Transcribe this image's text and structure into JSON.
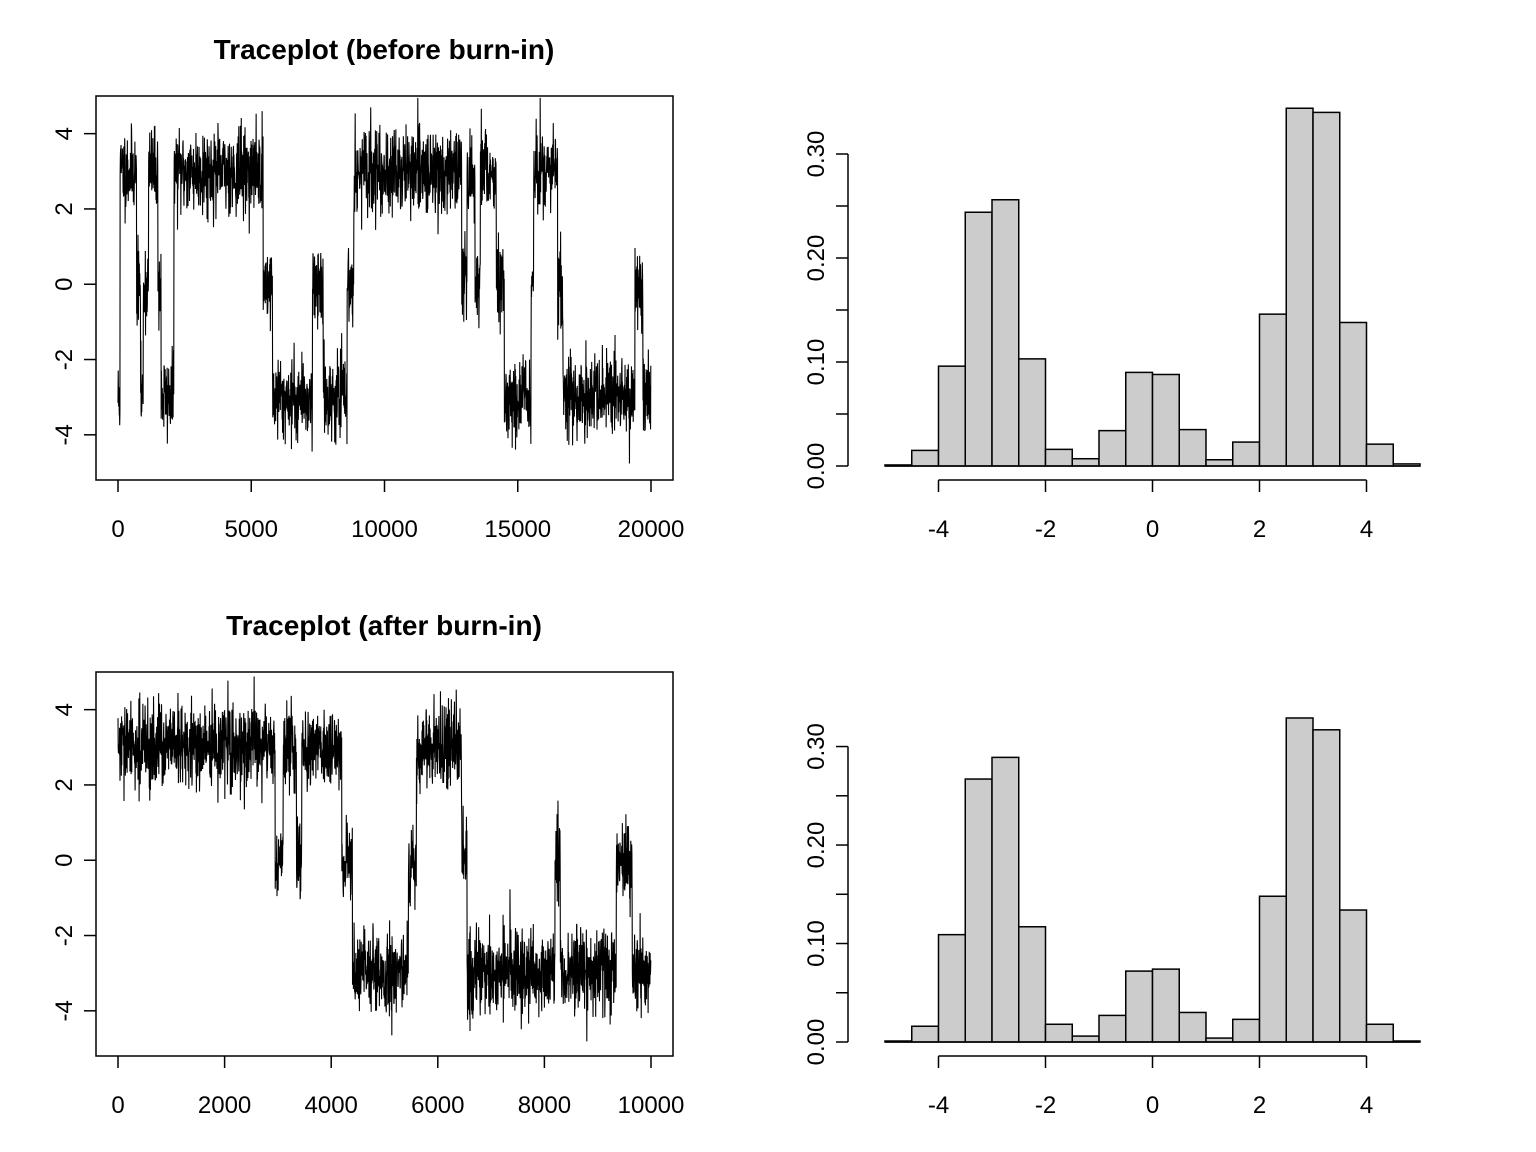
{
  "colors": {
    "bar_fill": "#cccccc",
    "line": "#000000",
    "background": "#ffffff"
  },
  "chart_data": [
    {
      "type": "line",
      "title": "Traceplot (before burn-in)",
      "xlabel": "",
      "ylabel": "",
      "xlim": [
        0,
        20000
      ],
      "ylim": [
        -5.2,
        5.0
      ],
      "x_ticks": [
        0,
        5000,
        10000,
        15000,
        20000
      ],
      "x_tick_labels": [
        "0",
        "5000",
        "10000",
        "15000",
        "20000"
      ],
      "y_ticks": [
        -4,
        -2,
        0,
        2,
        4
      ],
      "y_tick_labels": [
        "-4",
        "-2",
        "0",
        "2",
        "4"
      ],
      "noise": 0.55,
      "seed": 11,
      "segments": [
        [
          0,
          80,
          -3.0
        ],
        [
          80,
          200,
          3.0
        ],
        [
          200,
          560,
          3.0
        ],
        [
          560,
          700,
          3.0
        ],
        [
          700,
          850,
          0.0
        ],
        [
          850,
          950,
          -3.0
        ],
        [
          950,
          1150,
          0.0
        ],
        [
          1150,
          1500,
          3.0
        ],
        [
          1500,
          1620,
          0.0
        ],
        [
          1620,
          2100,
          -3.0
        ],
        [
          2100,
          5450,
          3.0
        ],
        [
          5450,
          5800,
          0.0
        ],
        [
          5800,
          7300,
          -3.0
        ],
        [
          7300,
          7700,
          0.0
        ],
        [
          7700,
          8600,
          -3.0
        ],
        [
          8600,
          8850,
          0.0
        ],
        [
          8850,
          12900,
          3.0
        ],
        [
          12900,
          13100,
          0.0
        ],
        [
          13100,
          13400,
          3.0
        ],
        [
          13400,
          13600,
          0.0
        ],
        [
          13600,
          14200,
          3.0
        ],
        [
          14200,
          14500,
          0.0
        ],
        [
          14500,
          15500,
          -3.0
        ],
        [
          15500,
          15600,
          0.0
        ],
        [
          15600,
          16500,
          3.0
        ],
        [
          16500,
          16700,
          0.0
        ],
        [
          16700,
          19400,
          -3.0
        ],
        [
          19400,
          19700,
          0.0
        ],
        [
          19700,
          20000,
          -3.0
        ]
      ]
    },
    {
      "type": "bar",
      "title": "",
      "xlabel": "",
      "ylabel": "",
      "bin_edges": [
        -5.0,
        -4.5,
        -4.0,
        -3.5,
        -3.0,
        -2.5,
        -2.0,
        -1.5,
        -1.0,
        -0.5,
        0.0,
        0.5,
        1.0,
        1.5,
        2.0,
        2.5,
        3.0,
        3.5,
        4.0,
        4.5,
        5.0
      ],
      "values": [
        0.001,
        0.015,
        0.096,
        0.244,
        0.256,
        0.103,
        0.016,
        0.007,
        0.034,
        0.09,
        0.088,
        0.035,
        0.006,
        0.023,
        0.146,
        0.344,
        0.34,
        0.138,
        0.021,
        0.002
      ],
      "xlim": [
        -5.0,
        5.0
      ],
      "ylim": [
        0,
        0.35
      ],
      "x_ticks": [
        -4,
        -2,
        0,
        2,
        4
      ],
      "x_tick_labels": [
        "-4",
        "-2",
        "0",
        "2",
        "4"
      ],
      "y_ticks": [
        0.0,
        0.05,
        0.1,
        0.15,
        0.2,
        0.25,
        0.3
      ],
      "y_tick_labels": [
        "0.00",
        "",
        "0.10",
        "",
        "0.20",
        "",
        "0.30"
      ]
    },
    {
      "type": "line",
      "title": "Traceplot (after burn-in)",
      "xlabel": "",
      "ylabel": "",
      "xlim": [
        0,
        10000
      ],
      "ylim": [
        -5.2,
        5.0
      ],
      "x_ticks": [
        0,
        2000,
        4000,
        6000,
        8000,
        10000
      ],
      "x_tick_labels": [
        "0",
        "2000",
        "4000",
        "6000",
        "8000",
        "10000"
      ],
      "y_ticks": [
        -4,
        -2,
        0,
        2,
        4
      ],
      "y_tick_labels": [
        "-4",
        "-2",
        "0",
        "2",
        "4"
      ],
      "noise": 0.55,
      "seed": 29,
      "segments": [
        [
          0,
          2950,
          3.0
        ],
        [
          2950,
          3100,
          0.0
        ],
        [
          3100,
          3350,
          3.0
        ],
        [
          3350,
          3450,
          0.0
        ],
        [
          3450,
          4200,
          3.0
        ],
        [
          4200,
          4400,
          0.0
        ],
        [
          4400,
          5450,
          -3.0
        ],
        [
          5450,
          5600,
          0.0
        ],
        [
          5600,
          6450,
          3.0
        ],
        [
          6450,
          6550,
          0.0
        ],
        [
          6550,
          8200,
          -3.0
        ],
        [
          8200,
          8300,
          0.0
        ],
        [
          8300,
          9350,
          -3.0
        ],
        [
          9350,
          9650,
          0.0
        ],
        [
          9650,
          10000,
          -3.0
        ]
      ]
    },
    {
      "type": "bar",
      "title": "",
      "xlabel": "",
      "ylabel": "",
      "bin_edges": [
        -5.0,
        -4.5,
        -4.0,
        -3.5,
        -3.0,
        -2.5,
        -2.0,
        -1.5,
        -1.0,
        -0.5,
        0.0,
        0.5,
        1.0,
        1.5,
        2.0,
        2.5,
        3.0,
        3.5,
        4.0,
        4.5,
        5.0
      ],
      "values": [
        0.001,
        0.016,
        0.109,
        0.267,
        0.289,
        0.117,
        0.018,
        0.006,
        0.027,
        0.072,
        0.074,
        0.03,
        0.004,
        0.023,
        0.148,
        0.329,
        0.317,
        0.134,
        0.018,
        0.001
      ],
      "xlim": [
        -5.0,
        5.0
      ],
      "ylim": [
        0,
        0.33
      ],
      "x_ticks": [
        -4,
        -2,
        0,
        2,
        4
      ],
      "x_tick_labels": [
        "-4",
        "-2",
        "0",
        "2",
        "4"
      ],
      "y_ticks": [
        0.0,
        0.05,
        0.1,
        0.15,
        0.2,
        0.25,
        0.3
      ],
      "y_tick_labels": [
        "0.00",
        "",
        "0.10",
        "",
        "0.20",
        "",
        "0.30"
      ]
    }
  ]
}
